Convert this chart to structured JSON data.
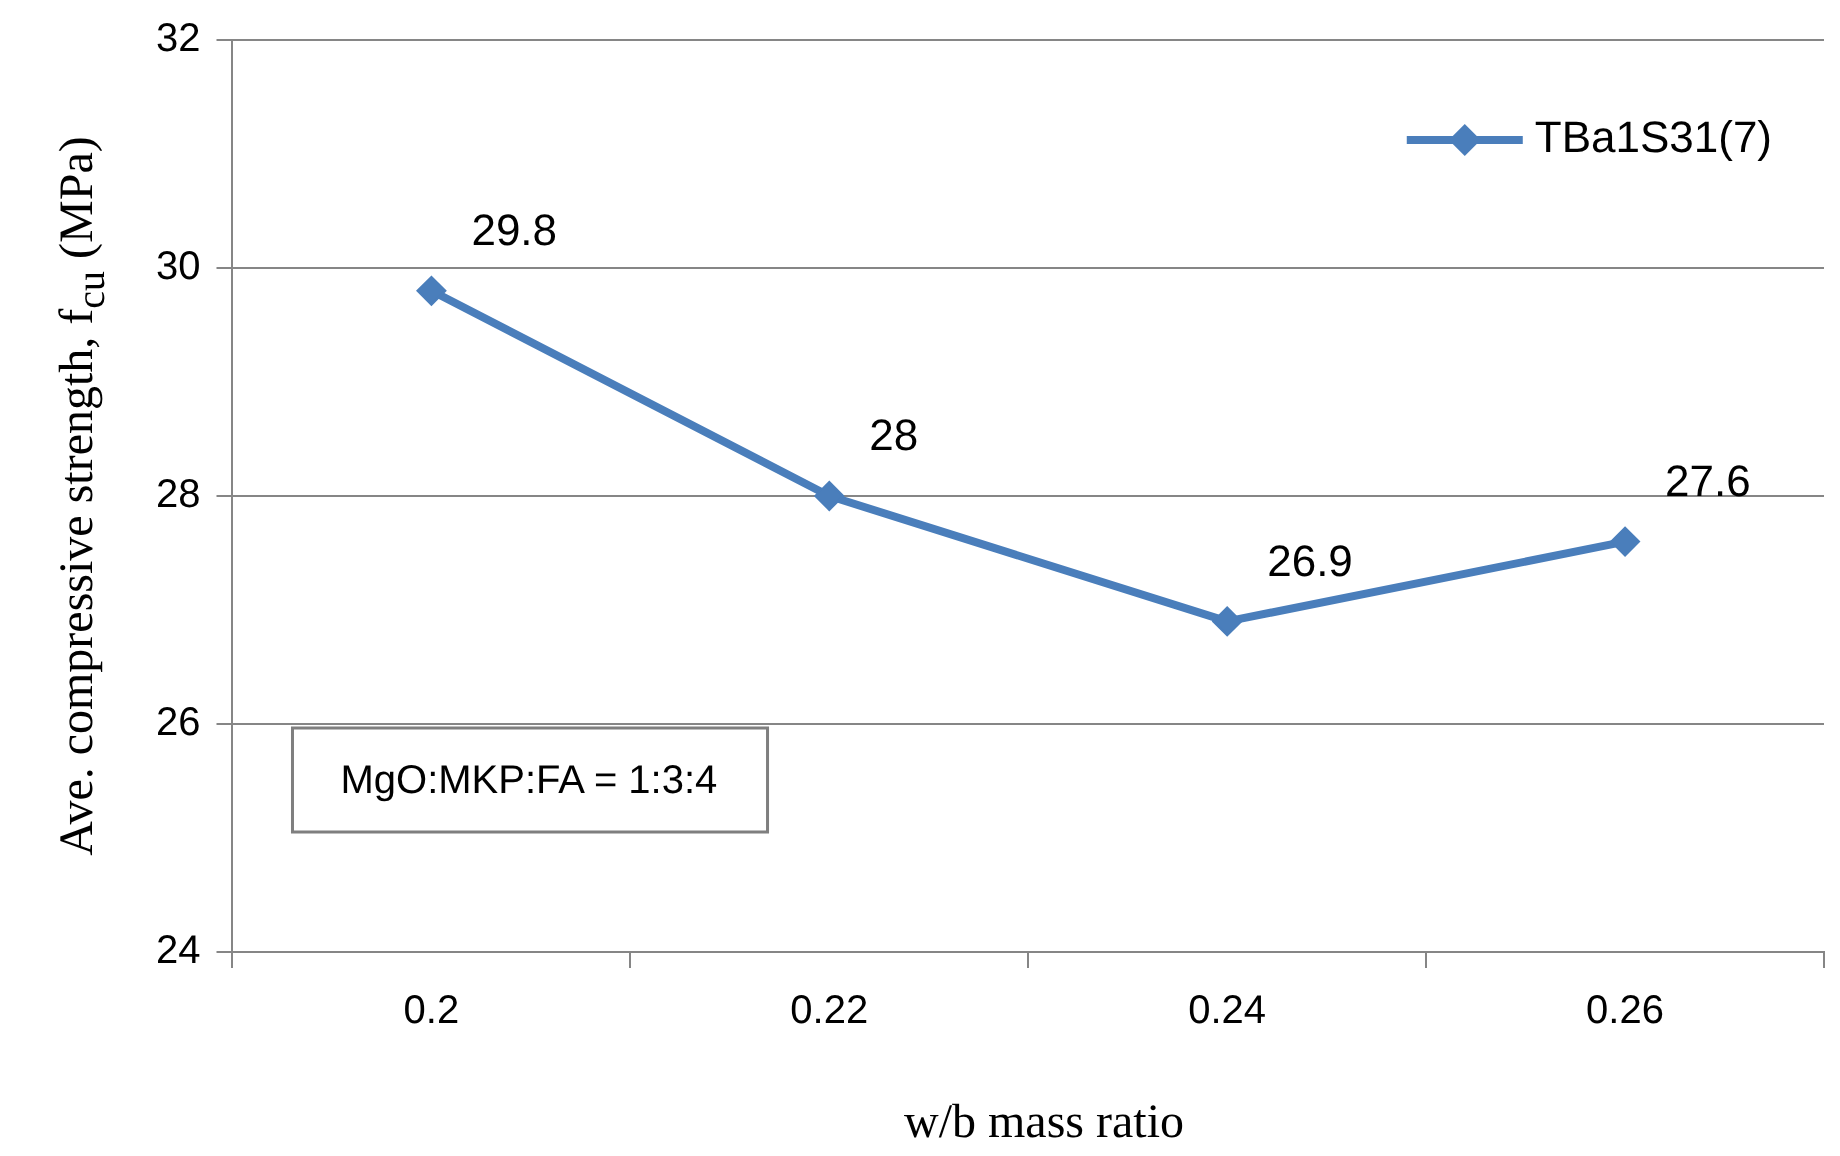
{
  "chart_data": {
    "type": "line",
    "xlabel": "w/b mass ratio",
    "ylabel": "Ave. compressive strength, f$_{cu}$ (MPa)",
    "categories": [
      "0.2",
      "0.22",
      "0.24",
      "0.26"
    ],
    "series": [
      {
        "name": "TBa1S31(7)",
        "color": "#4a7ebb",
        "values": [
          29.8,
          28,
          26.9,
          27.6
        ]
      }
    ],
    "ylim": [
      24,
      32
    ],
    "yticks": [
      24,
      26,
      28,
      30,
      32
    ],
    "grid": "y",
    "legend": "top right",
    "marker": "diamond",
    "line_style": "solid",
    "data_labels": true,
    "annotations": [
      "MgO:MKP:FA = 1:3:4"
    ]
  }
}
